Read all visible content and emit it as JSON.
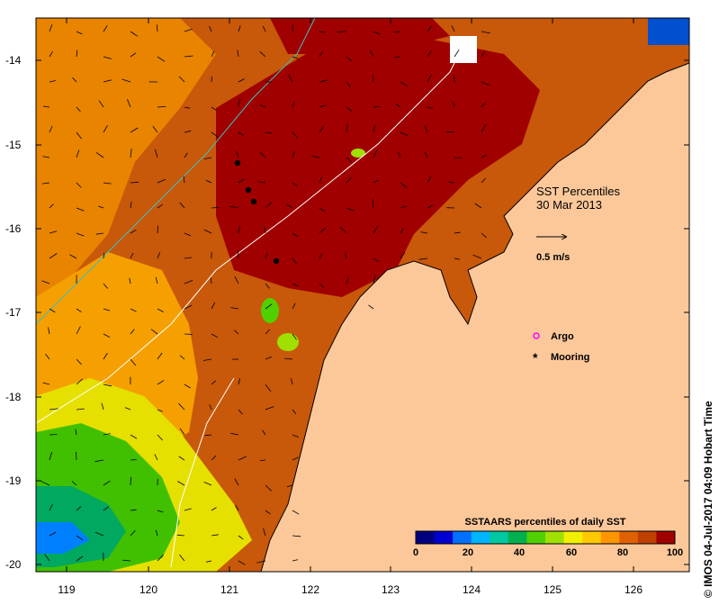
{
  "map": {
    "title": "SST Percentiles",
    "date": "30 Mar 2013",
    "velocity_label": "0.5 m/s",
    "longitude_ticks": [
      "119",
      "120",
      "121",
      "122",
      "123",
      "124",
      "125",
      "126"
    ],
    "latitude_ticks": [
      "-14",
      "-15",
      "-16",
      "-17",
      "-18",
      "-19",
      "-20"
    ],
    "legend": [
      {
        "label": "Argo",
        "color": "#ff00ff",
        "marker": "circle-outline"
      },
      {
        "label": "Mooring",
        "color": "#000000",
        "marker": "asterisk"
      }
    ],
    "colorbar": {
      "title": "SSTAARS percentiles of daily SST",
      "tick_labels": [
        "0",
        "20",
        "40",
        "60",
        "80",
        "100"
      ],
      "colors": [
        "#00007f",
        "#0000d0",
        "#0070ff",
        "#00b4ff",
        "#00c8a0",
        "#00b050",
        "#50d000",
        "#a0e000",
        "#f0f000",
        "#ffc800",
        "#ff9600",
        "#e06000",
        "#c04000",
        "#a00000"
      ]
    },
    "land_color": "#fcc89a",
    "credit": "© IMOS 04-Jul-2017 04:09 Hobart Time"
  }
}
